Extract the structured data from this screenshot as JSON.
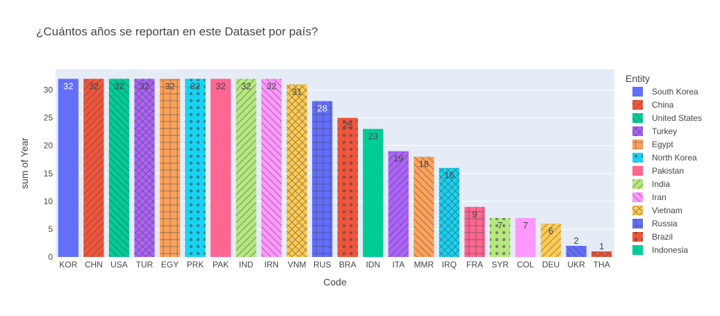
{
  "chart_data": {
    "type": "bar",
    "title": "¿Cuántos años se reportan en este Dataset por país?",
    "xlabel": "Code",
    "ylabel": "sum of Year",
    "ylim": [
      0,
      33.684
    ],
    "yticks": [
      0,
      5,
      10,
      15,
      20,
      25,
      30
    ],
    "grid": true,
    "legend_title": "Entity",
    "legend_position": "right",
    "categories": [
      "KOR",
      "CHN",
      "USA",
      "TUR",
      "EGY",
      "PRK",
      "PAK",
      "IND",
      "IRN",
      "VNM",
      "RUS",
      "BRA",
      "IDN",
      "ITA",
      "MMR",
      "IRQ",
      "FRA",
      "SYR",
      "COL",
      "DEU",
      "UKR",
      "THA"
    ],
    "values": [
      32,
      32,
      32,
      32,
      32,
      32,
      32,
      32,
      32,
      31,
      28,
      25,
      23,
      19,
      18,
      16,
      9,
      7,
      7,
      6,
      2,
      1
    ],
    "bar_colors": [
      "#636efa",
      "#EF553B",
      "#00cc96",
      "#ab63fa",
      "#FFA15A",
      "#19d3f3",
      "#FF6692",
      "#B6E880",
      "#FF97FF",
      "#FECB52",
      "#636efa",
      "#EF553B",
      "#00cc96",
      "#ab63fa",
      "#FFA15A",
      "#19d3f3",
      "#FF6692",
      "#B6E880",
      "#FF97FF",
      "#FECB52",
      "#636efa",
      "#EF553B"
    ],
    "bar_patterns": [
      "",
      "/",
      "\\",
      "x",
      "+",
      ".",
      "",
      "/",
      "\\",
      "x",
      "+",
      ".",
      "",
      "/",
      "\\",
      "x",
      "+",
      ".",
      "",
      "/",
      "\\",
      "x"
    ],
    "legend": [
      {
        "name": "South Korea",
        "color": "#636efa",
        "pattern": ""
      },
      {
        "name": "China",
        "color": "#EF553B",
        "pattern": "/"
      },
      {
        "name": "United States",
        "color": "#00cc96",
        "pattern": "\\"
      },
      {
        "name": "Turkey",
        "color": "#ab63fa",
        "pattern": "x"
      },
      {
        "name": "Egypt",
        "color": "#FFA15A",
        "pattern": "+"
      },
      {
        "name": "North Korea",
        "color": "#19d3f3",
        "pattern": "."
      },
      {
        "name": "Pakistan",
        "color": "#FF6692",
        "pattern": ""
      },
      {
        "name": "India",
        "color": "#B6E880",
        "pattern": "/"
      },
      {
        "name": "Iran",
        "color": "#FF97FF",
        "pattern": "\\"
      },
      {
        "name": "Vietnam",
        "color": "#FECB52",
        "pattern": "x"
      },
      {
        "name": "Russia",
        "color": "#636efa",
        "pattern": "+"
      },
      {
        "name": "Brazil",
        "color": "#EF553B",
        "pattern": "."
      },
      {
        "name": "Indonesia",
        "color": "#00cc96",
        "pattern": ""
      }
    ]
  }
}
